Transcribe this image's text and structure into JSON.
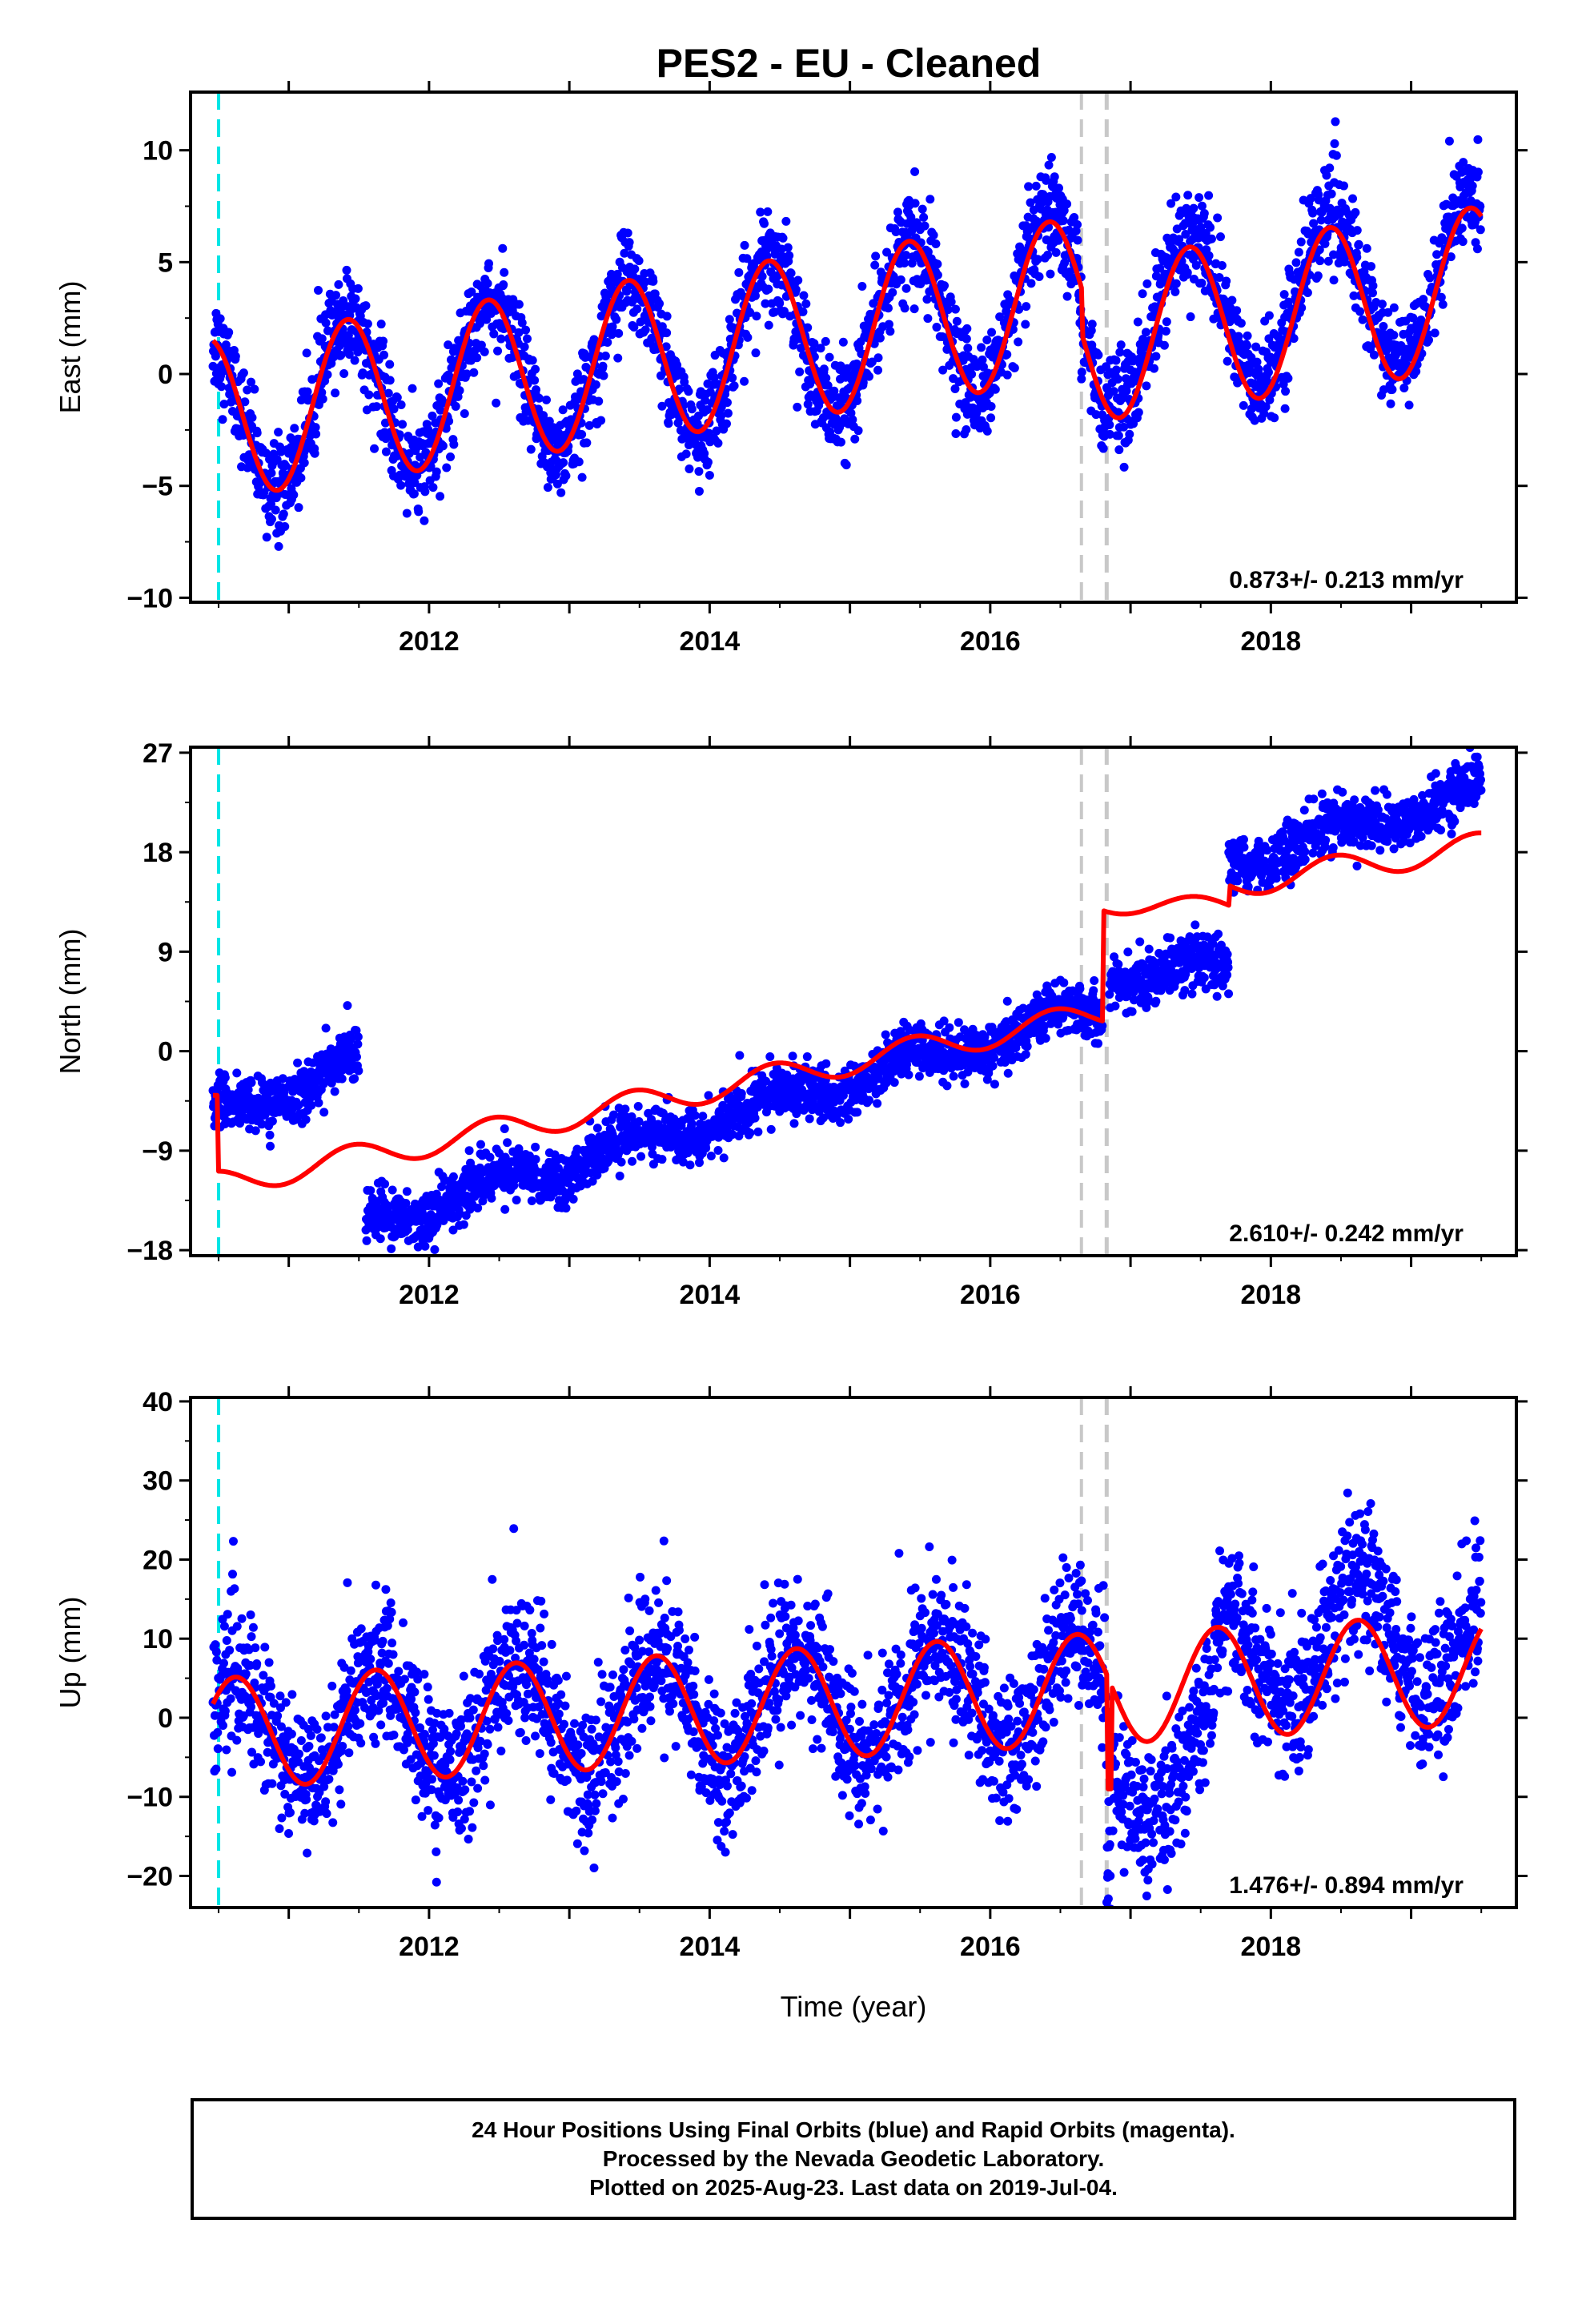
{
  "title": "PES2  - EU - Cleaned",
  "xlabel": "Time (year)",
  "footer": {
    "line1": "24 Hour Positions Using Final Orbits (blue) and Rapid Orbits (magenta).",
    "line2": "Processed by the Nevada Geodetic Laboratory.",
    "line3": "Plotted on 2025-Aug-23. Last data on 2019-Jul-04."
  },
  "colors": {
    "points": "#0000ff",
    "model": "#ff0000",
    "antenna_line": "#00e5e5",
    "break_line": "#c8c8c8"
  },
  "chart_data": [
    {
      "type": "scatter",
      "component": "East",
      "ylabel": "East (mm)",
      "rate_label": "0.873+/- 0.213 mm/yr",
      "xlim": [
        2010.3,
        2019.75
      ],
      "ylim": [
        -10.2,
        12.6
      ],
      "yticks": [
        10,
        5,
        0,
        -5,
        -10
      ],
      "xticks": [
        2012,
        2014,
        2016,
        2018
      ],
      "vertical_lines": [
        {
          "x": 2010.5,
          "style": "cyan-dashed"
        },
        {
          "x": 2016.65,
          "style": "gray-dashed"
        },
        {
          "x": 2016.83,
          "style": "gray-dashed"
        }
      ],
      "series": [
        {
          "kind": "points",
          "x_start": 2010.46,
          "x_end": 2019.5,
          "model": {
            "offset": -2.0,
            "rate": 0.873,
            "amplitude": 3.6,
            "phase_peak": 0.42,
            "noise_sd": 1.0
          }
        },
        {
          "kind": "model_line",
          "x": [
            2010.46,
            2016.65,
            2016.83,
            2019.5
          ]
        }
      ]
    },
    {
      "type": "scatter",
      "component": "North",
      "ylabel": "North (mm)",
      "rate_label": "2.610+/- 0.242 mm/yr",
      "xlim": [
        2010.3,
        2019.75
      ],
      "ylim": [
        -18.5,
        27.5
      ],
      "yticks": [
        27,
        18,
        9,
        0,
        -9,
        -18
      ],
      "xticks": [
        2012,
        2014,
        2016,
        2018
      ],
      "vertical_lines": [
        {
          "x": 2010.5,
          "style": "cyan-dashed"
        },
        {
          "x": 2016.65,
          "style": "gray-dashed"
        },
        {
          "x": 2016.83,
          "style": "gray-dashed"
        }
      ],
      "series": [
        {
          "kind": "points",
          "segments": [
            {
              "x": [
                2010.46,
                2011.5
              ],
              "y": [
                -6.0,
                -1.0
              ]
            },
            {
              "x": [
                2011.55,
                2016.8
              ],
              "y": [
                -15.5,
                4.0
              ]
            },
            {
              "x": [
                2016.85,
                2017.7
              ],
              "y": [
                7.0,
                7.0
              ]
            },
            {
              "x": [
                2017.7,
                2019.5
              ],
              "y": [
                17.0,
                23.5
              ]
            }
          ]
        },
        {
          "kind": "model_line",
          "x": [
            2010.46,
            2019.5
          ]
        }
      ]
    },
    {
      "type": "scatter",
      "component": "Up",
      "ylabel": "Up (mm)",
      "rate_label": "1.476+/- 0.894 mm/yr",
      "xlim": [
        2010.3,
        2019.75
      ],
      "ylim": [
        -24,
        40.5
      ],
      "yticks": [
        40,
        30,
        20,
        10,
        0,
        -10,
        -20
      ],
      "xticks": [
        2012,
        2014,
        2016,
        2018
      ],
      "vertical_lines": [
        {
          "x": 2010.5,
          "style": "cyan-dashed"
        },
        {
          "x": 2016.65,
          "style": "gray-dashed"
        },
        {
          "x": 2016.83,
          "style": "gray-dashed"
        }
      ],
      "series": [
        {
          "kind": "points",
          "x_start": 2010.46,
          "x_end": 2019.5,
          "model": {
            "offset": -3.0,
            "rate": 1.476,
            "amplitude": 7.0,
            "phase_peak": 0.62,
            "noise_sd": 4.5
          }
        },
        {
          "kind": "model_line",
          "x": [
            2010.46,
            2016.65,
            2016.83,
            2019.5
          ]
        }
      ]
    }
  ]
}
